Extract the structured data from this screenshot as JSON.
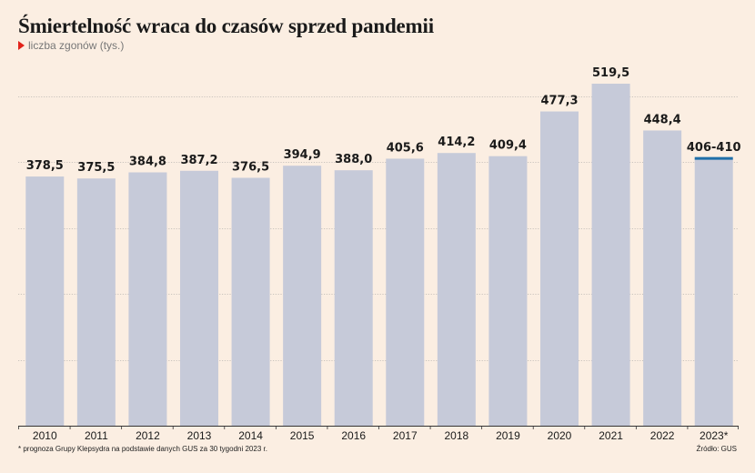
{
  "title": "Śmiertelność wraca do czasów sprzed pandemii",
  "subtitle": "liczba zgonów (tys.)",
  "footnote": "* prognoza Grupy Klepsydra na podstawie danych GUS za 30 tygodni 2023 r.",
  "source": "Źródło: GUS",
  "colors": {
    "bar": "#c6cad9",
    "highlight": "#1f6fa8",
    "background": "#fbeee2",
    "grid": "#999999",
    "baseline": "#333333",
    "marker": "#e2231a"
  },
  "chart_data": {
    "type": "bar",
    "categories": [
      "2010",
      "2011",
      "2012",
      "2013",
      "2014",
      "2015",
      "2016",
      "2017",
      "2018",
      "2019",
      "2020",
      "2021",
      "2022",
      "2023*"
    ],
    "values": [
      378.5,
      375.5,
      384.8,
      387.2,
      376.5,
      394.9,
      388.0,
      405.6,
      414.2,
      409.4,
      477.3,
      519.5,
      448.4,
      406
    ],
    "value_labels": [
      "378,5",
      "375,5",
      "384,8",
      "387,2",
      "376,5",
      "394,9",
      "388,0",
      "405,6",
      "414,2",
      "409,4",
      "477,3",
      "519,5",
      "448,4",
      "406-410"
    ],
    "range_last": [
      406,
      410
    ],
    "ylim": [
      0,
      550
    ],
    "grid": true,
    "title": "Śmiertelność wraca do czasów sprzed pandemii",
    "ylabel": "liczba zgonów (tys.)"
  }
}
